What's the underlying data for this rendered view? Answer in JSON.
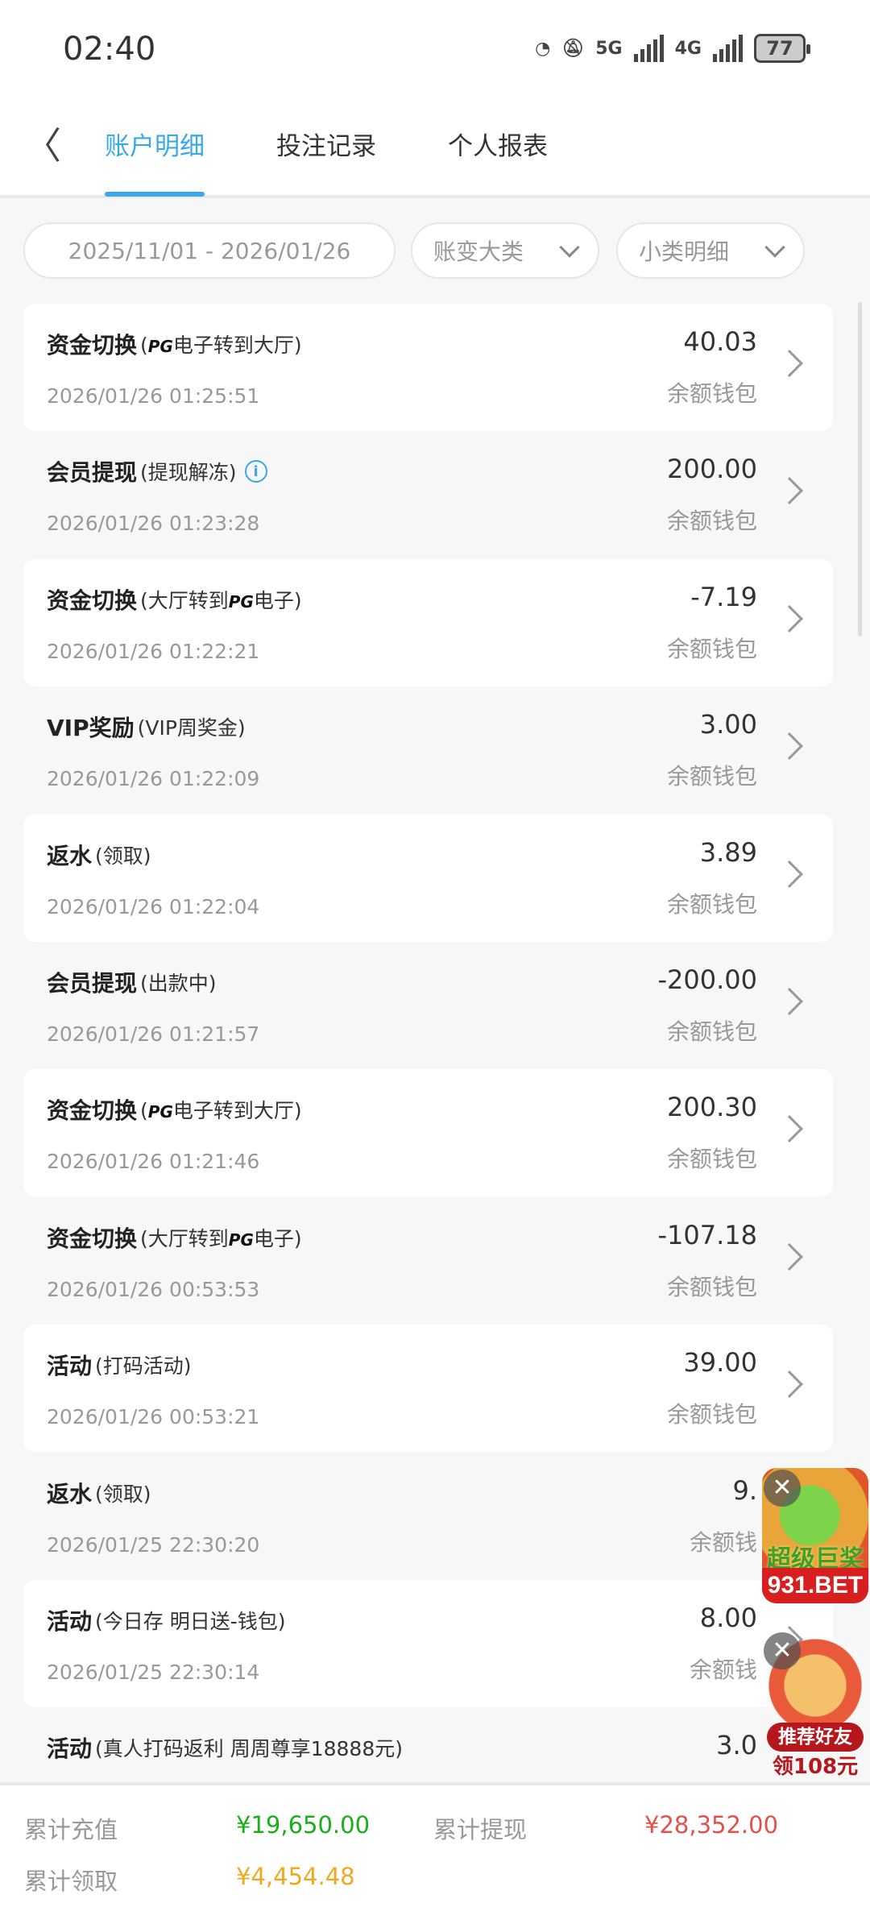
{
  "status_bar": {
    "time": "02:40",
    "net1": "5G",
    "net2": "4G",
    "battery": "77"
  },
  "header": {
    "tabs": [
      {
        "label": "账户明细",
        "active": true
      },
      {
        "label": "投注记录"
      },
      {
        "label": "个人报表"
      }
    ]
  },
  "filters": {
    "date_range": "2025/11/01 - 2026/01/26",
    "category": "账变大类",
    "subcategory": "小类明细"
  },
  "records": [
    {
      "title": "资金切换",
      "pre": "(",
      "pg": "PG",
      "sub": "电子转到大厅)",
      "time": "2026/01/26 01:25:51",
      "amount": "40.03",
      "wallet": "余额钱包"
    },
    {
      "title": "会员提现",
      "sub": "(提现解冻)",
      "info": true,
      "time": "2026/01/26 01:23:28",
      "amount": "200.00",
      "wallet": "余额钱包"
    },
    {
      "title": "资金切换",
      "pre": "(大厅转到",
      "pg": "PG",
      "sub": "电子)",
      "time": "2026/01/26 01:22:21",
      "amount": "-7.19",
      "wallet": "余额钱包"
    },
    {
      "title": "VIP奖励",
      "sub": "(VIP周奖金)",
      "time": "2026/01/26 01:22:09",
      "amount": "3.00",
      "wallet": "余额钱包"
    },
    {
      "title": "返水",
      "sub": "(领取)",
      "time": "2026/01/26 01:22:04",
      "amount": "3.89",
      "wallet": "余额钱包"
    },
    {
      "title": "会员提现",
      "sub": "(出款中)",
      "time": "2026/01/26 01:21:57",
      "amount": "-200.00",
      "wallet": "余额钱包"
    },
    {
      "title": "资金切换",
      "pre": "(",
      "pg": "PG",
      "sub": "电子转到大厅)",
      "time": "2026/01/26 01:21:46",
      "amount": "200.30",
      "wallet": "余额钱包"
    },
    {
      "title": "资金切换",
      "pre": "(大厅转到",
      "pg": "PG",
      "sub": "电子)",
      "time": "2026/01/26 00:53:53",
      "amount": "-107.18",
      "wallet": "余额钱包"
    },
    {
      "title": "活动",
      "sub": "(打码活动)",
      "time": "2026/01/26 00:53:21",
      "amount": "39.00",
      "wallet": "余额钱包"
    },
    {
      "title": "返水",
      "sub": "(领取)",
      "time": "2026/01/25 22:30:20",
      "amount": "9.",
      "wallet": "余额钱"
    },
    {
      "title": "活动",
      "sub": "(今日存 明日送-钱包)",
      "time": "2026/01/25 22:30:14",
      "amount": "8.00",
      "wallet": "余额钱"
    },
    {
      "title": "活动",
      "sub": "(真人打码返利 周周尊享18888元)",
      "time": "",
      "amount": "3.0",
      "wallet": ""
    }
  ],
  "summary": {
    "recharge_label": "累计充值",
    "recharge": "¥19,650.00",
    "withdraw_label": "累计提现",
    "withdraw": "¥28,352.00",
    "claim_label": "累计领取",
    "claim": "¥4,454.48"
  },
  "colors": {
    "accent": "#3aa8e8",
    "recharge": "#1aae1a",
    "withdraw": "#e0524a",
    "claim": "#f0a820"
  },
  "ads": {
    "jackpot": {
      "slogan": "超级巨奖",
      "brand": "931.BET"
    },
    "referral": {
      "line1": "推荐好友",
      "line2": "领108元"
    }
  }
}
